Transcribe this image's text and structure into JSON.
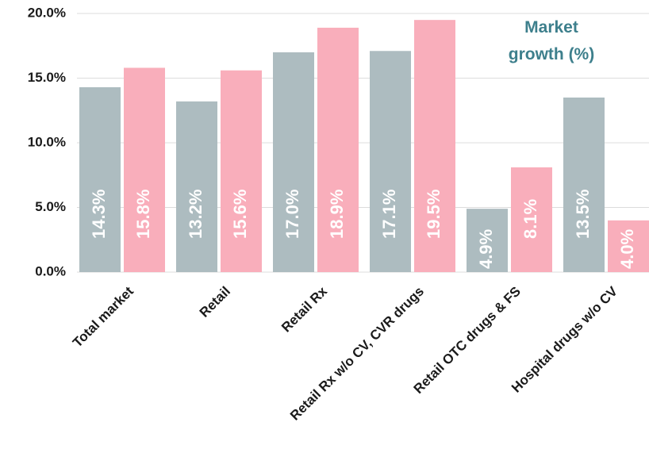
{
  "chart_data": {
    "type": "bar",
    "title": "Market growth (%)",
    "categories": [
      "Total market",
      "Retail",
      "Retail Rx",
      "Retail Rx w/o CV, CVR drugs",
      "Retail OTC drugs & FS",
      "Hospital drugs w/o CV"
    ],
    "series": [
      {
        "color": "#adbcc0",
        "values": [
          14.3,
          13.2,
          17.0,
          17.1,
          4.9,
          13.5
        ],
        "value_labels": [
          "14.3%",
          "13.2%",
          "17.0%",
          "17.1%",
          "4.9%",
          "13.5%"
        ]
      },
      {
        "color": "#f9aebb",
        "values": [
          15.8,
          15.6,
          18.9,
          19.5,
          8.1,
          4.0
        ],
        "value_labels": [
          "15.8%",
          "15.6%",
          "18.9%",
          "19.5%",
          "8.1%",
          "4.0%"
        ]
      }
    ],
    "ylim": [
      0,
      20
    ],
    "yticks": [
      {
        "value": 0,
        "label": "0.0%"
      },
      {
        "value": 5,
        "label": "5.0%"
      },
      {
        "value": 10,
        "label": "10.0%"
      },
      {
        "value": 15,
        "label": "15.0%"
      },
      {
        "value": 20,
        "label": "20.0%"
      }
    ],
    "grid": true
  }
}
